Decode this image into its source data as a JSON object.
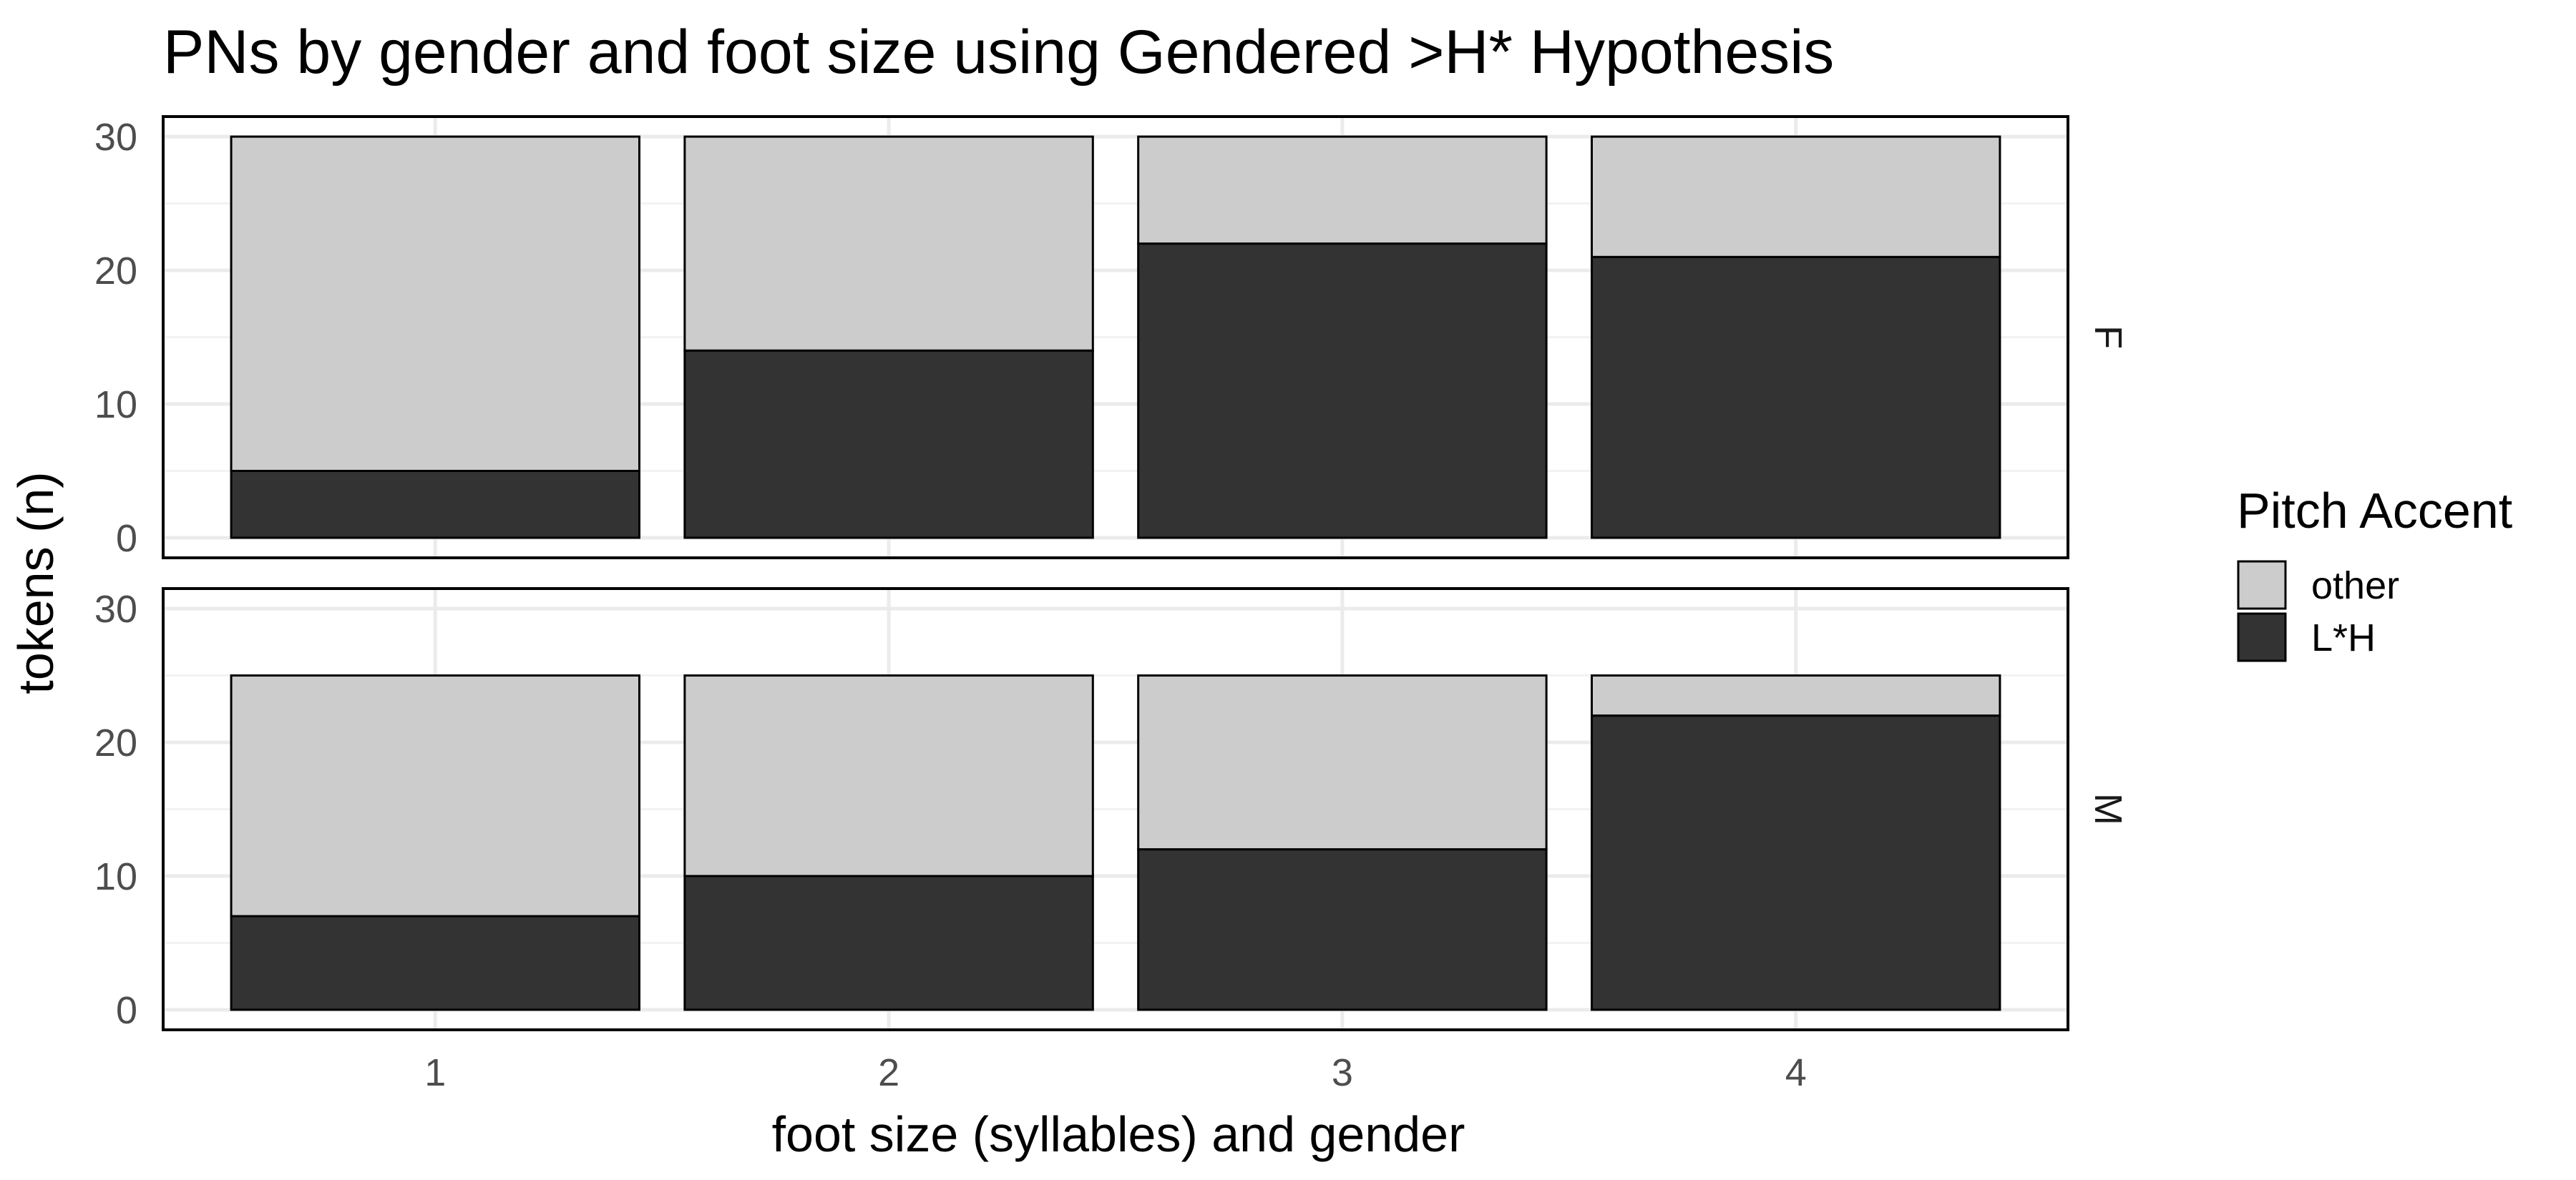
{
  "chart_data": {
    "type": "bar",
    "stacked": true,
    "title": "PNs by gender and foot size using Gendered >H* Hypothesis",
    "xlabel": "foot size (syllables) and gender",
    "ylabel": "tokens (n)",
    "categories": [
      "1",
      "2",
      "3",
      "4"
    ],
    "ylim": [
      0,
      30
    ],
    "yticks": [
      0,
      10,
      20,
      30
    ],
    "grid": true,
    "legend": {
      "title": "Pitch Accent",
      "position": "right",
      "entries": [
        {
          "label": "other",
          "color": "#cccccc"
        },
        {
          "label": "L*H",
          "color": "#333333"
        }
      ]
    },
    "facets": [
      {
        "label": "F",
        "series": [
          {
            "name": "L*H",
            "values": [
              5,
              14,
              22,
              21
            ]
          },
          {
            "name": "other",
            "values": [
              25,
              16,
              8,
              9
            ]
          }
        ]
      },
      {
        "label": "M",
        "series": [
          {
            "name": "L*H",
            "values": [
              7,
              10,
              12,
              22
            ]
          },
          {
            "name": "other",
            "values": [
              18,
              15,
              13,
              3
            ]
          }
        ]
      }
    ]
  }
}
